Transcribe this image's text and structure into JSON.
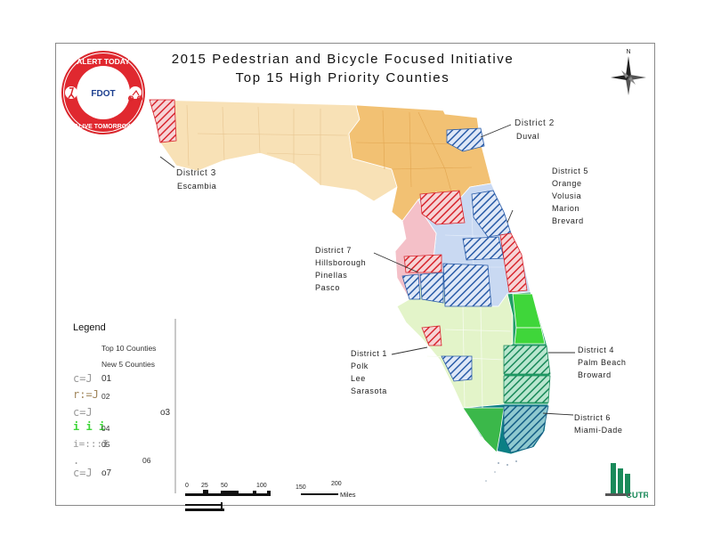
{
  "title": {
    "line1": "2015 Pedestrian and Bicycle Focused Initiative",
    "line2": "Top 15 High Priority Counties"
  },
  "logo": {
    "top_text": "ALERT TODAY",
    "bottom_text": "ALIVE TOMORROW",
    "center_text": "FDOT"
  },
  "compass": {
    "north": "N"
  },
  "districts": [
    {
      "name": "District 2",
      "counties": [
        "Duval"
      ]
    },
    {
      "name": "District 3",
      "counties": [
        "Escambia"
      ]
    },
    {
      "name": "District 5",
      "counties": [
        "Orange",
        "Volusia",
        "Marion",
        "Brevard"
      ]
    },
    {
      "name": "District 7",
      "counties": [
        "Hillsborough",
        "Pinellas",
        "Pasco"
      ]
    },
    {
      "name": "District 1",
      "counties": [
        "Polk",
        "Lee",
        "Sarasota"
      ]
    },
    {
      "name": "District 4",
      "counties": [
        "Palm Beach",
        "Broward"
      ]
    },
    {
      "name": "District 6",
      "counties": [
        "Miami-Dade"
      ]
    }
  ],
  "legend": {
    "title": "Legend",
    "top10": "Top 10 Counties",
    "new5": "New 5 Counties",
    "items": [
      {
        "symbol": "c=J",
        "label": "01"
      },
      {
        "symbol": "r:=J",
        "label": "02"
      },
      {
        "symbol": "c=J",
        "label": "o3"
      },
      {
        "symbol": "i i i",
        "label": "04"
      },
      {
        "symbol": "i=:::I",
        "label": "05"
      },
      {
        "symbol": ".",
        "label": "06"
      },
      {
        "symbol": "c=J",
        "label": "o7"
      }
    ]
  },
  "scale": {
    "ticks": [
      "0",
      "25",
      "50",
      "100",
      "150",
      "200"
    ],
    "unit": "Miles"
  },
  "cutr": {
    "text": "CUTR"
  },
  "colors": {
    "d1": "#e3f4c9",
    "d2": "#f2c173",
    "d3": "#f8e1b6",
    "d4": "#21a067",
    "d5": "#c9d9f2",
    "d6": "#0b7f84",
    "d7": "#f4c0c8",
    "top10_hatch": "#e0323a",
    "new5_hatch": "#2c5fae",
    "green_bright": "#3fd63a"
  }
}
